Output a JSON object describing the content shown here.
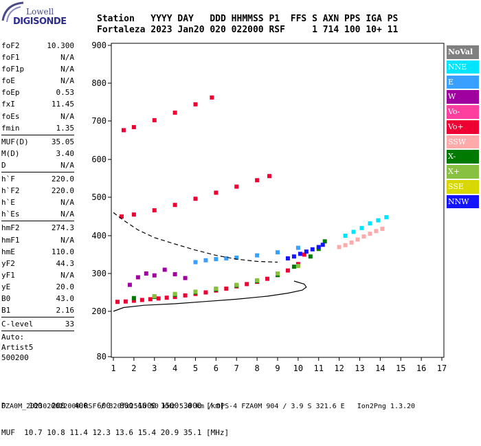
{
  "logo": {
    "line1": "Lowell",
    "line2": "DIGISONDE"
  },
  "header": {
    "top": "Station   YYYY DAY   DDD HHMMSS P1  FFS S AXN PPS IGA PS",
    "bottom": "Fortaleza 2023 Jan20 020 022000 RSF     1 714 100 10+ 11"
  },
  "params": {
    "g1": [
      {
        "name": "foF2",
        "value": "10.300"
      },
      {
        "name": "foF1",
        "value": "N/A"
      },
      {
        "name": "foF1p",
        "value": "N/A"
      },
      {
        "name": "foE",
        "value": "N/A"
      },
      {
        "name": "foEp",
        "value": "0.53"
      },
      {
        "name": "fxI",
        "value": "11.45"
      },
      {
        "name": "foEs",
        "value": "N/A"
      },
      {
        "name": "fmin",
        "value": "1.35"
      }
    ],
    "g2": [
      {
        "name": "MUF(D)",
        "value": "35.05"
      },
      {
        "name": "M(D)",
        "value": "3.40"
      },
      {
        "name": "D",
        "value": "N/A"
      }
    ],
    "g3": [
      {
        "name": "h`F",
        "value": "220.0"
      },
      {
        "name": "h`F2",
        "value": "220.0"
      },
      {
        "name": "h`E",
        "value": "N/A"
      },
      {
        "name": "h`Es",
        "value": "N/A"
      }
    ],
    "g4": [
      {
        "name": "hmF2",
        "value": "274.3"
      },
      {
        "name": "hmF1",
        "value": "N/A"
      },
      {
        "name": "hmE",
        "value": "110.0"
      },
      {
        "name": "yF2",
        "value": "44.3"
      },
      {
        "name": "yF1",
        "value": "N/A"
      },
      {
        "name": "yE",
        "value": "20.0"
      },
      {
        "name": "B0",
        "value": "43.0"
      },
      {
        "name": "B1",
        "value": "2.16"
      }
    ],
    "g5": [
      {
        "name": "C-level",
        "value": "33"
      }
    ],
    "auto": [
      "Auto:",
      "Artist5",
      "500200"
    ]
  },
  "legend": [
    {
      "label": "NoVal",
      "color": "#808080"
    },
    {
      "label": "NNE",
      "color": "#00e5ff"
    },
    {
      "label": "E",
      "color": "#3aa0ff"
    },
    {
      "label": "W",
      "color": "#a000a0"
    },
    {
      "label": "Vo-",
      "color": "#ff3fa0"
    },
    {
      "label": "Vo+",
      "color": "#ee0033"
    },
    {
      "label": "SSW",
      "color": "#ffaaaa"
    },
    {
      "label": "X-",
      "color": "#007a00"
    },
    {
      "label": "X+",
      "color": "#88c040"
    },
    {
      "label": "SSE",
      "color": "#d8d800"
    },
    {
      "label": "NNW",
      "color": "#1414ff"
    }
  ],
  "bottom": {
    "d_line": "D     100  200  400  600  800 1000 1500 3000 [km]",
    "muf_line": "MUF  10.7 10.8 11.4 12.3 13.6 15.4 20.9 35.1 [MHz]"
  },
  "footer": "FZA0M_2023020022000.RSF / 320fx256h 50 kHz 5.0 km / DPS-4 FZA0M 904 / 3.9 S 321.6 E   Ion2Png 1.3.20",
  "chart_data": {
    "type": "scatter",
    "xlim": [
      1,
      17
    ],
    "ylim": [
      80,
      900
    ],
    "x_ticks": [
      1,
      2,
      3,
      4,
      5,
      6,
      7,
      8,
      9,
      10,
      11,
      12,
      13,
      14,
      15,
      16,
      17
    ],
    "y_ticks": [
      80,
      200,
      300,
      400,
      500,
      600,
      700,
      800,
      900
    ],
    "grid": false,
    "legend_position": "right",
    "series": [
      {
        "name": "Vo+",
        "color": "#ee0033",
        "x": [
          1.2,
          1.6,
          2.0,
          2.4,
          2.8,
          3.2,
          3.6,
          4.0,
          4.5,
          5.0,
          5.5,
          6.0,
          6.5,
          7.0,
          7.5,
          8.0,
          8.5,
          9.0,
          9.5,
          10.0,
          10.3
        ],
        "y": [
          225,
          226,
          228,
          230,
          232,
          234,
          236,
          238,
          242,
          246,
          250,
          255,
          260,
          266,
          272,
          278,
          286,
          296,
          308,
          325,
          350
        ]
      },
      {
        "name": "Vo+",
        "color": "#ee0033",
        "x": [
          1.4,
          2.0,
          3.0,
          4.0,
          5.0,
          6.0,
          7.0,
          8.0,
          8.6
        ],
        "y": [
          450,
          455,
          466,
          480,
          496,
          512,
          528,
          545,
          556
        ]
      },
      {
        "name": "Vo+",
        "color": "#ee0033",
        "x": [
          1.5,
          2.0,
          3.0,
          4.0,
          5.0,
          5.8
        ],
        "y": [
          676,
          684,
          702,
          722,
          744,
          762
        ]
      },
      {
        "name": "X-",
        "color": "#007a00",
        "x": [
          2.0,
          3.0,
          4.0,
          5.0,
          6.0,
          7.0,
          8.0,
          9.0,
          9.8,
          10.6,
          11.0,
          11.3
        ],
        "y": [
          235,
          238,
          244,
          250,
          258,
          268,
          280,
          296,
          318,
          345,
          365,
          385
        ]
      },
      {
        "name": "NNW",
        "color": "#1414ff",
        "x": [
          9.5,
          9.8,
          10.1,
          10.4,
          10.7,
          11.0,
          11.2
        ],
        "y": [
          340,
          345,
          352,
          358,
          364,
          370,
          376
        ]
      },
      {
        "name": "SSW",
        "color": "#ffaaaa",
        "x": [
          12.0,
          12.3,
          12.6,
          12.9,
          13.2,
          13.5,
          13.8,
          14.1
        ],
        "y": [
          370,
          375,
          382,
          390,
          398,
          405,
          412,
          418
        ]
      },
      {
        "name": "NNE",
        "color": "#00e5ff",
        "x": [
          12.3,
          12.7,
          13.1,
          13.5,
          13.9,
          14.3
        ],
        "y": [
          400,
          410,
          420,
          432,
          440,
          448
        ]
      },
      {
        "name": "E",
        "color": "#3aa0ff",
        "x": [
          5.0,
          5.5,
          6.0,
          6.5,
          7.0,
          8.0,
          9.0,
          10.0
        ],
        "y": [
          330,
          335,
          338,
          340,
          342,
          348,
          356,
          368
        ]
      },
      {
        "name": "W",
        "color": "#a000a0",
        "x": [
          1.8,
          2.2,
          2.6,
          3.0,
          3.5,
          4.0,
          4.5
        ],
        "y": [
          270,
          290,
          300,
          295,
          310,
          298,
          288
        ]
      },
      {
        "name": "X+",
        "color": "#88c040",
        "x": [
          3.0,
          4.0,
          5.0,
          6.0,
          7.0,
          8.0,
          9.0,
          10.0
        ],
        "y": [
          240,
          246,
          252,
          260,
          270,
          282,
          300,
          320
        ]
      }
    ],
    "lines": [
      {
        "name": "profile-solid",
        "x": [
          1.0,
          1.5,
          2.5,
          4.0,
          5.5,
          7.0,
          8.5,
          9.5,
          10.2,
          10.4,
          10.3,
          9.8
        ],
        "y": [
          200,
          210,
          216,
          220,
          226,
          232,
          240,
          248,
          256,
          264,
          272,
          280
        ]
      },
      {
        "name": "profile-dashed",
        "x": [
          1.0,
          1.5,
          2.2,
          3.0,
          4.0,
          5.0,
          6.0,
          7.0,
          8.0,
          9.0
        ],
        "y": [
          460,
          440,
          415,
          395,
          378,
          362,
          348,
          338,
          332,
          330
        ]
      }
    ]
  }
}
